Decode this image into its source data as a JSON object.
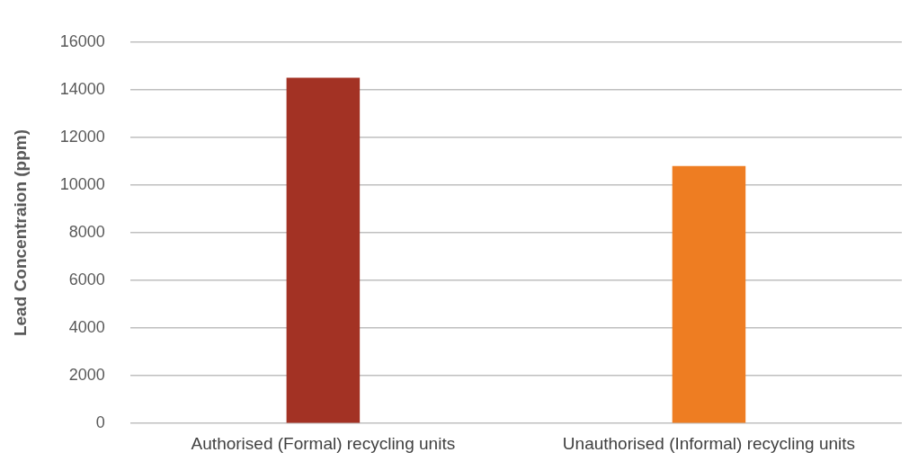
{
  "chart_data": {
    "type": "bar",
    "ylabel": "Lead Concentraion (ppm)",
    "categories": [
      "Authorised (Formal) recycling units",
      "Unauthorised (Informal) recycling units"
    ],
    "values": [
      14500,
      10800
    ],
    "colors": [
      "#a33224",
      "#ee7d22"
    ],
    "ylim": [
      0,
      16000
    ],
    "yticks": [
      0,
      2000,
      4000,
      6000,
      8000,
      10000,
      12000,
      14000,
      16000
    ],
    "grid": "y",
    "legend": false
  }
}
